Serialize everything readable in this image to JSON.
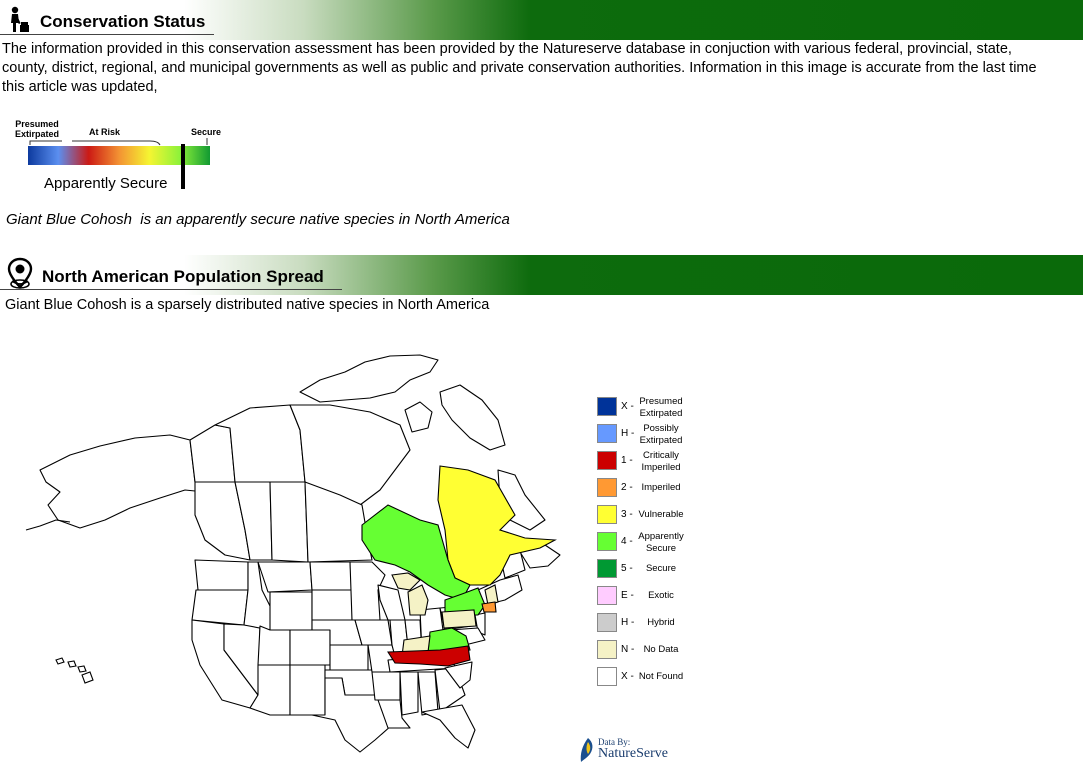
{
  "conservation": {
    "title": "Conservation Status",
    "description": "The information provided in this conservation assessment has been provided by the Natureserve database in conjuction with various federal, provincial, state, county, district, regional, and municipal governments as well as public and private conservation authorities. Information in this image is accurate from the last time this article was updated,",
    "scale": {
      "label_presumed": "Presumed",
      "label_extirpated": "Extirpated",
      "label_at_risk": "At Risk",
      "label_secure": "Secure",
      "current_status": "Apparently Secure",
      "segments": [
        "#0d3a9e",
        "#5b8ff0",
        "#cc1a14",
        "#f39233",
        "#f5f532",
        "#8ef23a",
        "#129a32"
      ]
    },
    "summary": "Giant Blue Cohosh  is an apparently secure native species in North America"
  },
  "population": {
    "title": "North American Population Spread",
    "summary": "Giant Blue Cohosh is a sparsely distributed native species in North America"
  },
  "legend": [
    {
      "code": "X -",
      "desc": "Presumed Extirpated",
      "color": "#003399"
    },
    {
      "code": "H -",
      "desc": "Possibly Extirpated",
      "color": "#6699ff"
    },
    {
      "code": "1 -",
      "desc": "Critically Imperiled",
      "color": "#cc0000"
    },
    {
      "code": "2 -",
      "desc": "Imperiled",
      "color": "#ff9933"
    },
    {
      "code": "3 -",
      "desc": "Vulnerable",
      "color": "#ffff33"
    },
    {
      "code": "4 -",
      "desc": "Apparently Secure",
      "color": "#66ff33"
    },
    {
      "code": "5 -",
      "desc": "Secure",
      "color": "#009933"
    },
    {
      "code": "E -",
      "desc": "Exotic",
      "color": "#ffccff"
    },
    {
      "code": "H -",
      "desc": "Hybrid",
      "color": "#cccccc"
    },
    {
      "code": "N -",
      "desc": "No Data",
      "color": "#f5f2c6"
    },
    {
      "code": "X -",
      "desc": "Not Found",
      "color": "#ffffff"
    }
  ],
  "credit": {
    "line1": "Data By:",
    "line2": "NatureServe"
  },
  "colors": {
    "brand_green": "#0a6a0a",
    "quebec": "#ffff33",
    "ontario": "#66ff33",
    "north_carolina": "#cc0000",
    "no_data": "#f5f2c6"
  }
}
